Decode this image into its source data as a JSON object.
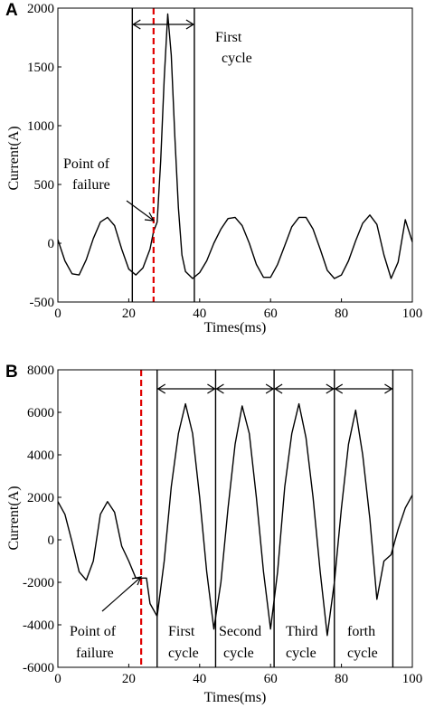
{
  "chart_data": [
    {
      "panel": "A",
      "type": "line",
      "xlabel": "Times(ms)",
      "ylabel": "Current(A)",
      "xlim": [
        0,
        100
      ],
      "ylim": [
        -500,
        2000
      ],
      "xticks": [
        0,
        20,
        40,
        60,
        80,
        100
      ],
      "yticks": [
        -500,
        0,
        500,
        1000,
        1500,
        2000
      ],
      "series": [
        {
          "x": [
            0,
            2,
            4,
            6,
            8,
            10,
            12,
            14,
            16,
            18,
            20,
            22,
            24,
            26,
            27,
            28,
            29,
            30,
            31,
            32,
            33,
            34,
            35,
            36,
            38,
            40,
            42,
            44,
            46,
            48,
            50,
            52,
            54,
            56,
            58,
            60,
            62,
            64,
            66,
            68,
            70,
            72,
            74,
            76,
            78,
            80,
            82,
            84,
            86,
            88,
            90,
            92,
            94,
            96,
            98,
            100
          ],
          "y": [
            30,
            -150,
            -260,
            -270,
            -140,
            40,
            180,
            220,
            150,
            -50,
            -220,
            -270,
            -210,
            -50,
            100,
            180,
            700,
            1400,
            1950,
            1600,
            900,
            300,
            -100,
            -240,
            -300,
            -250,
            -150,
            0,
            120,
            210,
            220,
            150,
            0,
            -180,
            -290,
            -290,
            -180,
            -20,
            140,
            220,
            220,
            120,
            -50,
            -230,
            -300,
            -270,
            -150,
            20,
            170,
            240,
            160,
            -100,
            -300,
            -160,
            200,
            10
          ]
        }
      ],
      "markers": {
        "fault_x": 27,
        "vlines_x": [
          21,
          38.5
        ]
      },
      "annotations": {
        "cycle_label_line1": "First",
        "cycle_label_line2": "cycle",
        "failure_label_line1": "Point of",
        "failure_label_line2": "failure"
      }
    },
    {
      "panel": "B",
      "type": "line",
      "xlabel": "Times(ms)",
      "ylabel": "Current(A)",
      "xlim": [
        0,
        100
      ],
      "ylim": [
        -6000,
        8000
      ],
      "xticks": [
        0,
        20,
        40,
        60,
        80,
        100
      ],
      "yticks": [
        -6000,
        -4000,
        -2000,
        0,
        2000,
        4000,
        6000,
        8000
      ],
      "series": [
        {
          "x": [
            0,
            2,
            4,
            6,
            8,
            10,
            12,
            14,
            16,
            18,
            20,
            22,
            23,
            24,
            25,
            26,
            28,
            30,
            32,
            34,
            36,
            38,
            40,
            42,
            44,
            46,
            48,
            50,
            52,
            54,
            56,
            58,
            60,
            62,
            64,
            66,
            68,
            70,
            72,
            74,
            76,
            78,
            80,
            82,
            84,
            86,
            88,
            90,
            92,
            94,
            96,
            98,
            100
          ],
          "y": [
            1800,
            1200,
            -100,
            -1500,
            -1900,
            -1000,
            1200,
            1800,
            1300,
            -300,
            -1000,
            -1800,
            -1800,
            -1800,
            -1800,
            -3000,
            -3600,
            -1000,
            2500,
            5000,
            6400,
            5000,
            2000,
            -1500,
            -4200,
            -2000,
            1500,
            4500,
            6300,
            5000,
            2000,
            -1500,
            -4200,
            -1500,
            2500,
            5000,
            6400,
            4800,
            2000,
            -1500,
            -4500,
            -2000,
            1500,
            4500,
            6100,
            4000,
            1000,
            -2800,
            -1000,
            -700,
            500,
            1500,
            2100
          ]
        }
      ],
      "markers": {
        "fault_x": 23.5,
        "vlines_x": [
          28,
          44.5,
          61,
          78,
          94.5
        ]
      },
      "annotations": {
        "failure_label_line1": "Point of",
        "failure_label_line2": "failure",
        "cycles": [
          {
            "line1": "First",
            "line2": "cycle"
          },
          {
            "line1": "Second",
            "line2": "cycle"
          },
          {
            "line1": "Third",
            "line2": "cycle"
          },
          {
            "line1": "forth",
            "line2": "cycle"
          }
        ]
      }
    }
  ],
  "colors": {
    "curve": "#000000",
    "fault_line": "#e00000"
  }
}
